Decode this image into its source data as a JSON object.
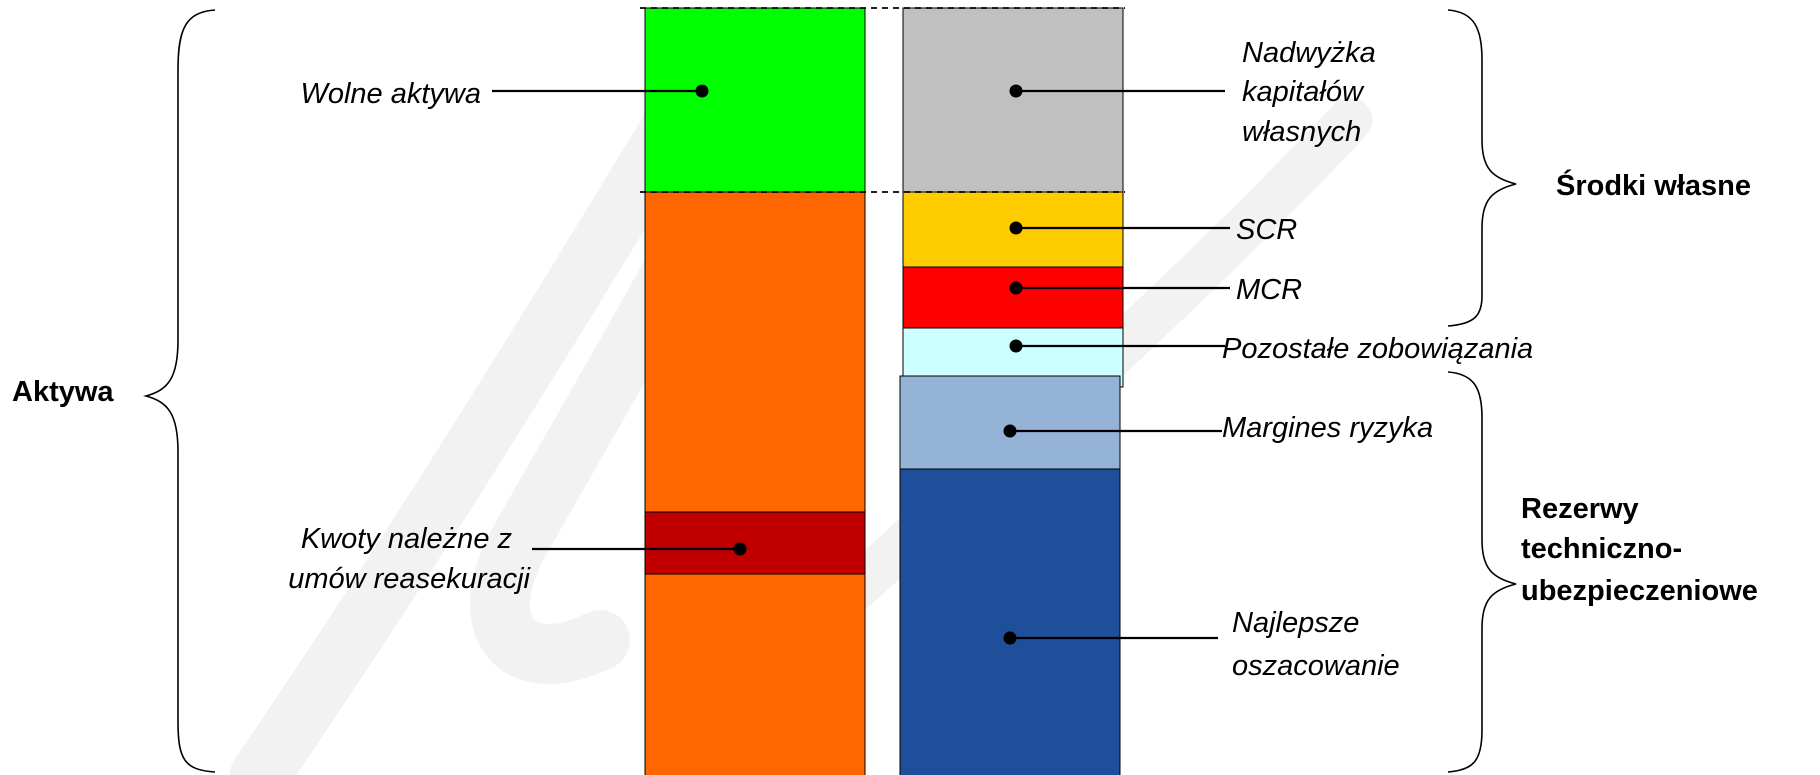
{
  "colors": {
    "wolne_aktywa": "#00ff00",
    "aktywa_pozostale": "#ff6600",
    "kwoty_reasekuracji": "#c00000",
    "nadwyzka": "#c0c0c0",
    "scr": "#ffcc00",
    "mcr": "#ff0000",
    "pozostale_zobowiazania": "#ccffff",
    "margines_ryzyka": "#95b3d7",
    "najlepsze_oszacowanie": "#1f4e9a",
    "watermark": "#f2f2f2"
  },
  "assets": {
    "label_wolne_aktywa": "Wolne aktywa",
    "label_kwoty": [
      "Kwoty należne z",
      "umów reasekuracji"
    ]
  },
  "liabilities": {
    "label_nadwyzka": [
      "Nadwyżka",
      "kapitałów",
      "własnych"
    ],
    "label_scr": "SCR",
    "label_mcr": "MCR",
    "label_pozostale": "Pozostałe zobowiązania",
    "label_margines": "Margines ryzyka",
    "label_najlepsze": [
      "Najlepsze",
      "oszacowanie"
    ]
  },
  "groups": {
    "aktywa": "Aktywa",
    "srodki_wlasne": "Środki własne",
    "rezerwy": [
      "Rezerwy",
      "techniczno-",
      "ubezpieczeniowe"
    ]
  }
}
